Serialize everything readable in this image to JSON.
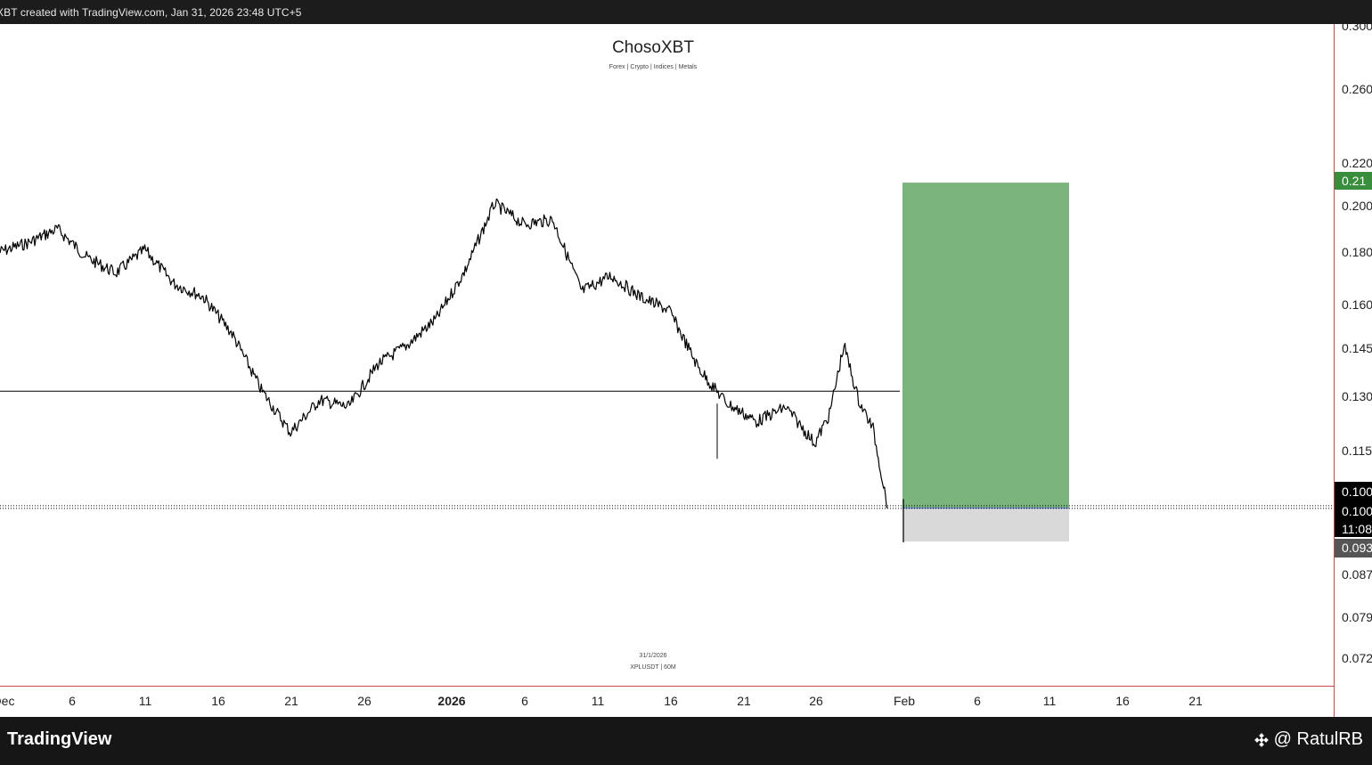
{
  "header": {
    "attribution": "XBT created with TradingView.com, Jan 31, 2026 23:48 UTC+5"
  },
  "chart_data": {
    "type": "line",
    "title": "ChosoXBT",
    "subtitle": "Forex | Crypto | Indices | Metals",
    "watermark_date": "31/1/2026",
    "watermark_symbol": "XPLUSDT | 60M",
    "x": [
      "Dec 1",
      "Dec 3",
      "Dec 5",
      "Dec 7",
      "Dec 9",
      "Dec 11",
      "Dec 13",
      "Dec 15",
      "Dec 17",
      "Dec 19",
      "Dec 21",
      "Dec 23",
      "Dec 25",
      "Dec 27",
      "Dec 29",
      "Dec 31",
      "Jan 2",
      "Jan 4",
      "Jan 6",
      "Jan 8",
      "Jan 10",
      "Jan 12",
      "Jan 14",
      "Jan 16",
      "Jan 18",
      "Jan 19",
      "Jan 20",
      "Jan 22",
      "Jan 24",
      "Jan 26",
      "Jan 27",
      "Jan 28",
      "Jan 29",
      "Jan 30",
      "Jan 31"
    ],
    "y": [
      0.18,
      0.184,
      0.19,
      0.178,
      0.172,
      0.181,
      0.168,
      0.163,
      0.15,
      0.132,
      0.12,
      0.129,
      0.127,
      0.14,
      0.146,
      0.155,
      0.173,
      0.201,
      0.192,
      0.194,
      0.165,
      0.171,
      0.163,
      0.158,
      0.139,
      0.133,
      0.128,
      0.123,
      0.127,
      0.117,
      0.125,
      0.146,
      0.129,
      0.121,
      0.101
    ],
    "y_axis_ticks": [
      "0.300",
      "0.260",
      "0.220",
      "0.200",
      "0.180",
      "0.160",
      "0.145",
      "0.130",
      "0.115",
      "0.087",
      "0.079",
      "0.072"
    ],
    "x_axis_ticks": [
      "Dec",
      "6",
      "11",
      "16",
      "21",
      "26",
      "2026",
      "6",
      "11",
      "16",
      "21",
      "26",
      "Feb",
      "6",
      "11",
      "16",
      "21"
    ],
    "horizontal_line": 0.1316,
    "position": {
      "type": "long",
      "entry": 0.1008,
      "target": 0.2108,
      "stop": 0.0932,
      "target_color": "#7cb47e",
      "stop_color": "#d9d9d9"
    },
    "price_labels": [
      {
        "text": "0.21",
        "color": "#388e3c"
      },
      {
        "text": "0.100",
        "color": "#000000"
      },
      {
        "text": "0.100",
        "color": "#000000"
      },
      {
        "text": "11:08",
        "color": "#000000"
      },
      {
        "text": "0.093",
        "color": "#555555"
      }
    ]
  },
  "footer": {
    "brand": "TradingView",
    "author": "@ RatulRB"
  }
}
